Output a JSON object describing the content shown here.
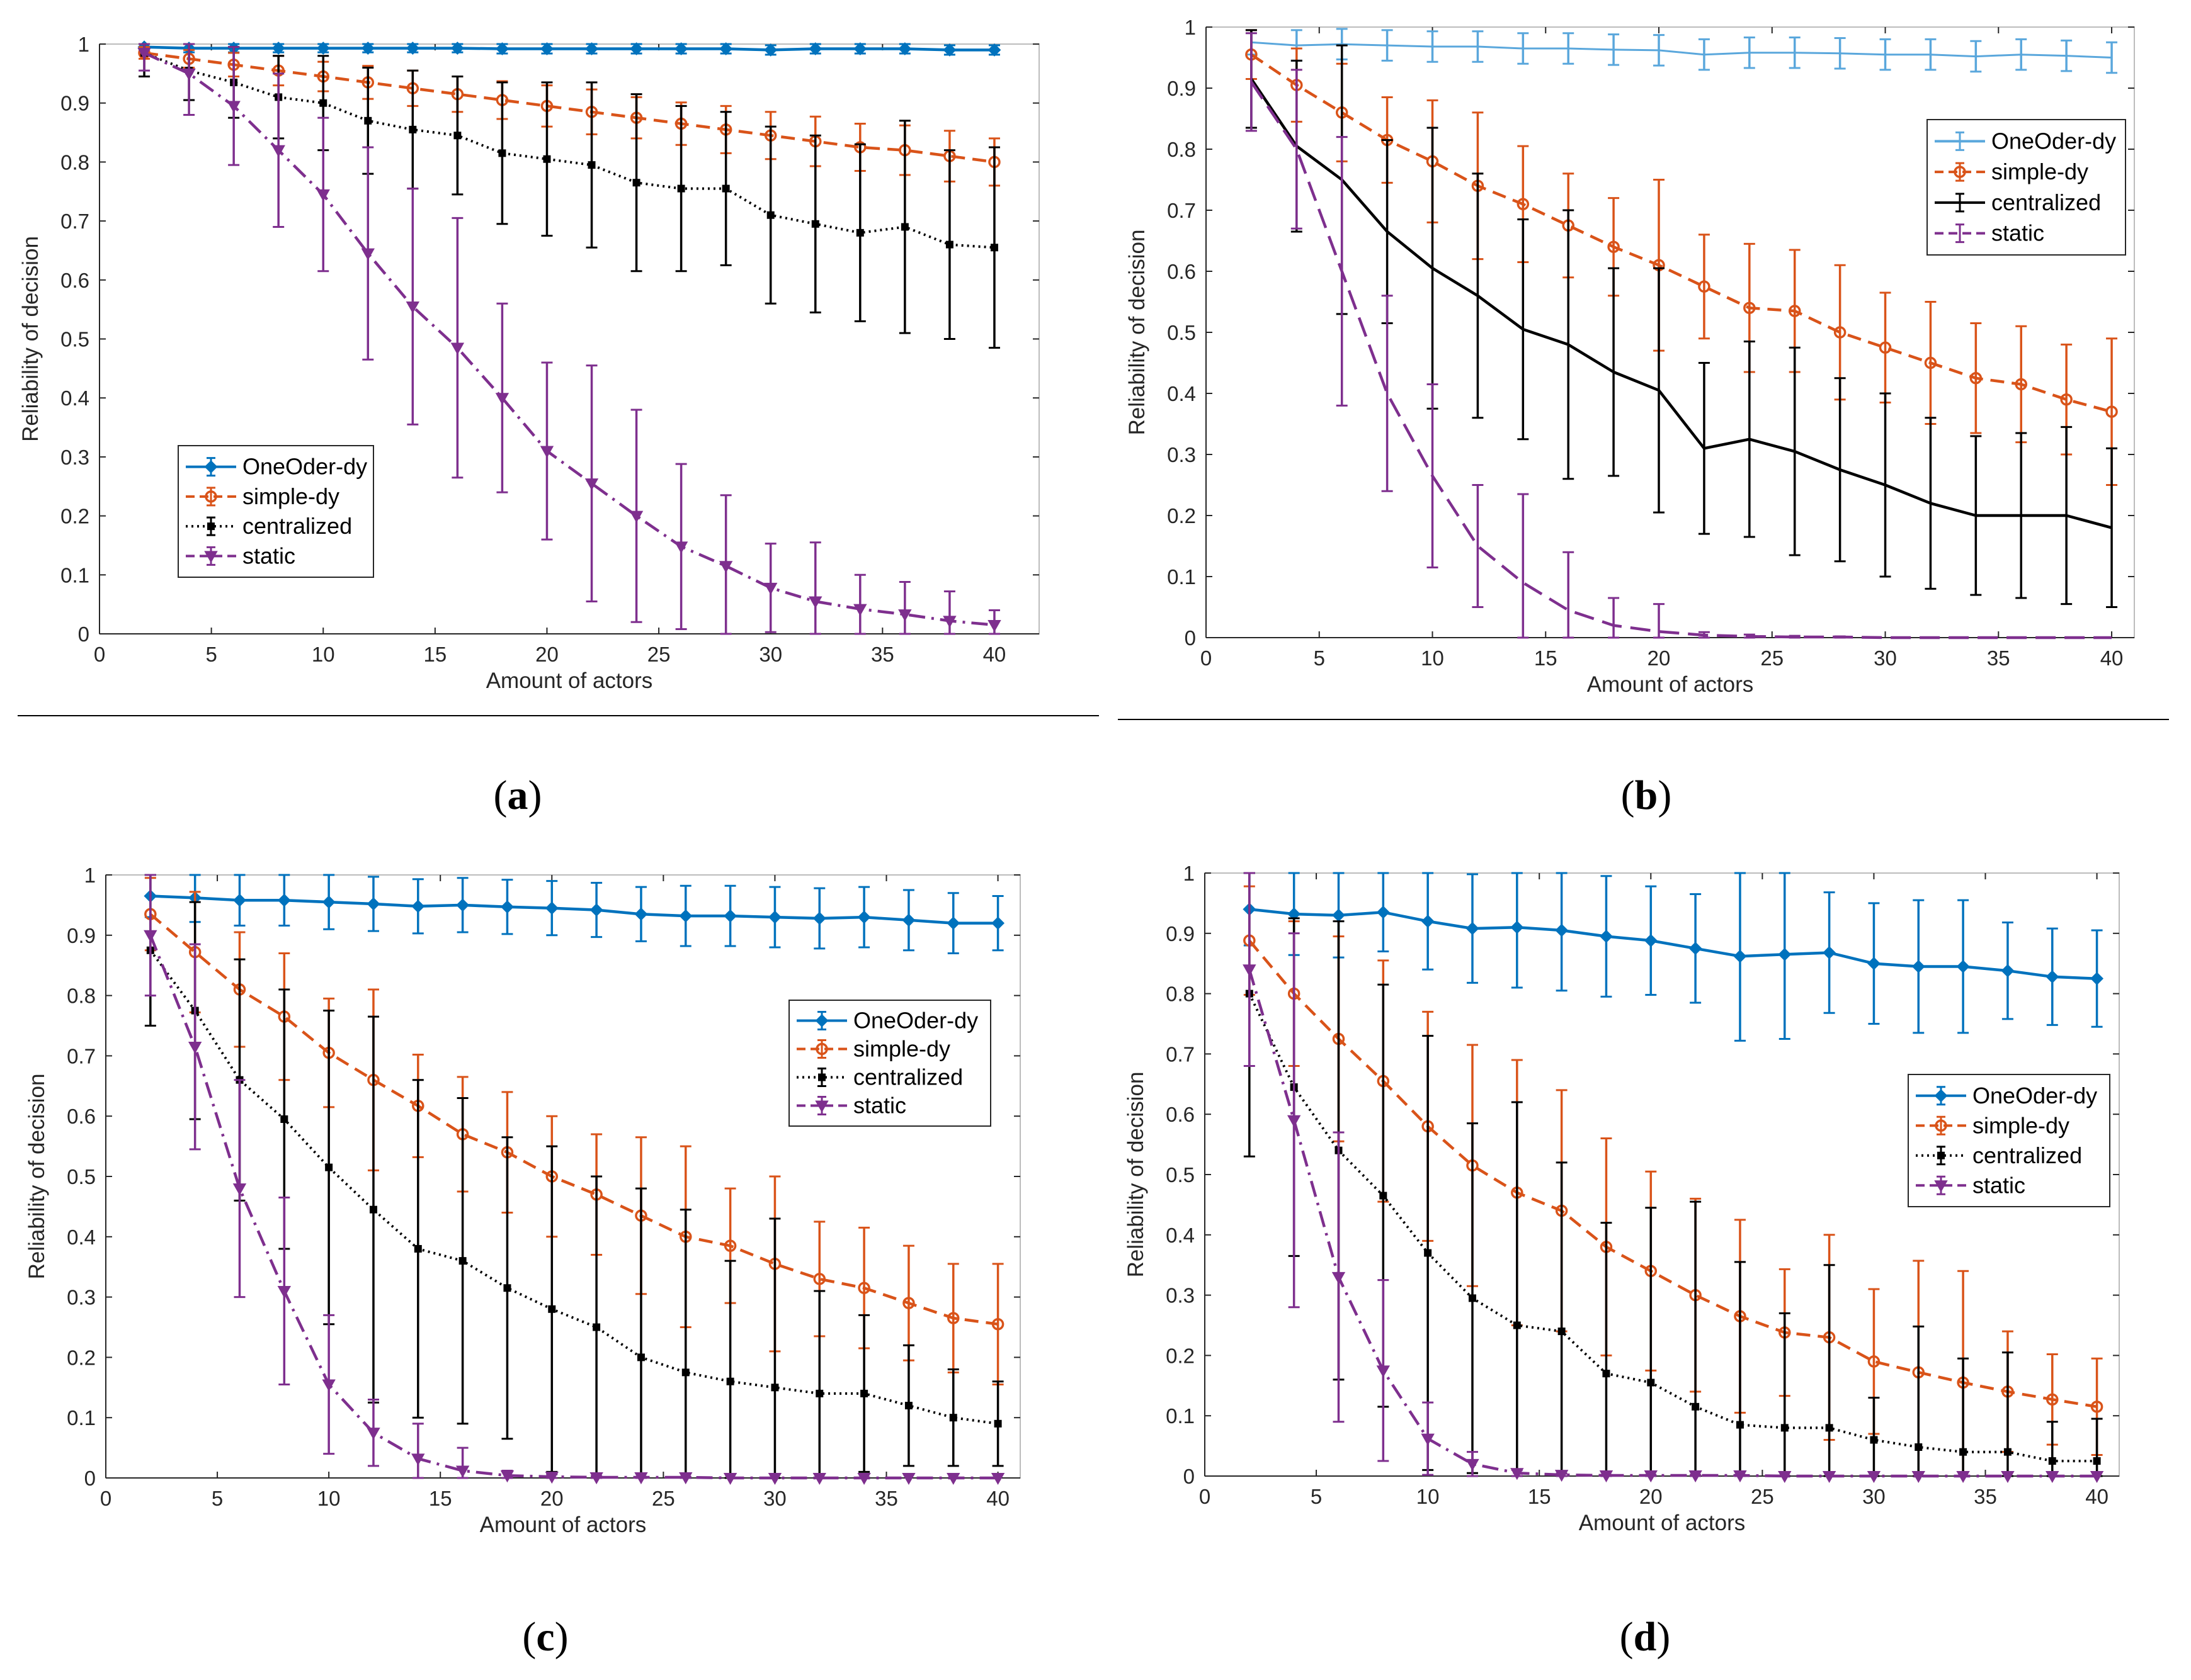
{
  "colors": {
    "OneOder-dy": "#0072BD",
    "simple-dy": "#D95319",
    "centralized": "#000000",
    "static": "#7E2F8E"
  },
  "chart_data": [
    {
      "id": "a",
      "type": "line",
      "caption_letter": "a",
      "xlabel": "Amount of actors",
      "ylabel": "Reliability of decision",
      "xlim": [
        0,
        42
      ],
      "ylim": [
        0,
        1
      ],
      "xticks": [
        0,
        5,
        10,
        15,
        20,
        25,
        30,
        35,
        40
      ],
      "yticks": [
        0,
        0.1,
        0.2,
        0.3,
        0.4,
        0.5,
        0.6,
        0.7,
        0.8,
        0.9,
        1
      ],
      "legend_position": "lower-left",
      "x": [
        2,
        4,
        6,
        8,
        10,
        12,
        14,
        16,
        18,
        20,
        22,
        24,
        26,
        28,
        30,
        32,
        34,
        36,
        38,
        40
      ],
      "series": [
        {
          "name": "OneOder-dy",
          "style": "solid",
          "marker": "diamond",
          "values": [
            0.995,
            0.993,
            0.993,
            0.993,
            0.993,
            0.993,
            0.993,
            0.993,
            0.992,
            0.992,
            0.992,
            0.992,
            0.992,
            0.992,
            0.99,
            0.992,
            0.992,
            0.992,
            0.99,
            0.99
          ],
          "errors": [
            0.006,
            0.007,
            0.007,
            0.007,
            0.007,
            0.007,
            0.007,
            0.007,
            0.008,
            0.008,
            0.008,
            0.008,
            0.008,
            0.008,
            0.008,
            0.008,
            0.008,
            0.008,
            0.008,
            0.008
          ]
        },
        {
          "name": "simple-dy",
          "style": "dashed",
          "marker": "circle",
          "values": [
            0.985,
            0.975,
            0.965,
            0.955,
            0.945,
            0.935,
            0.925,
            0.915,
            0.905,
            0.895,
            0.885,
            0.875,
            0.865,
            0.855,
            0.845,
            0.835,
            0.825,
            0.82,
            0.81,
            0.8
          ],
          "errors": [
            0.01,
            0.015,
            0.02,
            0.025,
            0.025,
            0.028,
            0.03,
            0.03,
            0.032,
            0.035,
            0.038,
            0.035,
            0.036,
            0.04,
            0.04,
            0.042,
            0.04,
            0.042,
            0.043,
            0.04
          ]
        },
        {
          "name": "centralized",
          "style": "dotted",
          "marker": "square",
          "values": [
            0.985,
            0.955,
            0.935,
            0.91,
            0.9,
            0.87,
            0.855,
            0.845,
            0.815,
            0.805,
            0.795,
            0.765,
            0.755,
            0.755,
            0.71,
            0.695,
            0.68,
            0.69,
            0.66,
            0.655
          ],
          "errors": [
            0.04,
            0.05,
            0.06,
            0.07,
            0.08,
            0.09,
            0.1,
            0.1,
            0.12,
            0.13,
            0.14,
            0.15,
            0.14,
            0.13,
            0.15,
            0.15,
            0.15,
            0.18,
            0.16,
            0.17
          ]
        },
        {
          "name": "static",
          "style": "dashdot",
          "marker": "triangle-down",
          "values": [
            0.985,
            0.95,
            0.895,
            0.82,
            0.745,
            0.645,
            0.555,
            0.485,
            0.4,
            0.31,
            0.255,
            0.2,
            0.148,
            0.115,
            0.078,
            0.055,
            0.042,
            0.033,
            0.022,
            0.015
          ],
          "errors": [
            0.03,
            0.07,
            0.1,
            0.13,
            0.13,
            0.18,
            0.2,
            0.22,
            0.16,
            0.15,
            0.2,
            0.18,
            0.14,
            0.12,
            0.075,
            0.1,
            0.058,
            0.055,
            0.05,
            0.025
          ]
        }
      ]
    },
    {
      "id": "b",
      "type": "line",
      "caption_letter": "b",
      "xlabel": "Amount of actors",
      "ylabel": "Reliability of decision",
      "xlim": [
        0,
        41
      ],
      "ylim": [
        0,
        1
      ],
      "xticks": [
        0,
        5,
        10,
        15,
        20,
        25,
        30,
        35,
        40
      ],
      "yticks": [
        0,
        0.1,
        0.2,
        0.3,
        0.4,
        0.5,
        0.6,
        0.7,
        0.8,
        0.9,
        1
      ],
      "legend_position": "upper-right",
      "x": [
        2,
        4,
        6,
        8,
        10,
        12,
        14,
        16,
        18,
        20,
        22,
        24,
        26,
        28,
        30,
        32,
        34,
        36,
        38,
        40
      ],
      "series": [
        {
          "name": "OneOder-dy",
          "style": "solid-light",
          "marker": "none",
          "values": [
            0.975,
            0.97,
            0.972,
            0.97,
            0.968,
            0.968,
            0.965,
            0.965,
            0.963,
            0.962,
            0.955,
            0.958,
            0.958,
            0.957,
            0.955,
            0.955,
            0.952,
            0.955,
            0.953,
            0.95
          ],
          "errors": [
            0.02,
            0.025,
            0.025,
            0.025,
            0.025,
            0.025,
            0.025,
            0.025,
            0.025,
            0.025,
            0.025,
            0.025,
            0.025,
            0.025,
            0.025,
            0.025,
            0.025,
            0.025,
            0.025,
            0.025
          ]
        },
        {
          "name": "simple-dy",
          "style": "dashed",
          "marker": "circle",
          "values": [
            0.955,
            0.905,
            0.86,
            0.815,
            0.78,
            0.74,
            0.71,
            0.675,
            0.64,
            0.61,
            0.575,
            0.54,
            0.535,
            0.5,
            0.475,
            0.45,
            0.425,
            0.415,
            0.39,
            0.37
          ],
          "errors": [
            0.04,
            0.06,
            0.08,
            0.07,
            0.1,
            0.12,
            0.095,
            0.085,
            0.08,
            0.14,
            0.085,
            0.105,
            0.1,
            0.11,
            0.09,
            0.1,
            0.09,
            0.095,
            0.09,
            0.12
          ]
        },
        {
          "name": "centralized",
          "style": "solid",
          "marker": "none",
          "values": [
            0.915,
            0.805,
            0.75,
            0.665,
            0.605,
            0.56,
            0.505,
            0.48,
            0.435,
            0.405,
            0.31,
            0.325,
            0.305,
            0.275,
            0.25,
            0.22,
            0.2,
            0.2,
            0.2,
            0.18
          ],
          "errors": [
            0.08,
            0.14,
            0.22,
            0.15,
            0.23,
            0.2,
            0.18,
            0.22,
            0.17,
            0.2,
            0.14,
            0.16,
            0.17,
            0.15,
            0.15,
            0.14,
            0.13,
            0.135,
            0.145,
            0.13
          ]
        },
        {
          "name": "static",
          "style": "dashed-long",
          "marker": "none",
          "values": [
            0.91,
            0.8,
            0.6,
            0.4,
            0.265,
            0.15,
            0.09,
            0.045,
            0.02,
            0.01,
            0.004,
            0.002,
            0.001,
            0.001,
            0.0,
            0.0,
            0.0,
            0.0,
            0.0,
            0.0
          ],
          "errors": [
            0.08,
            0.13,
            0.22,
            0.16,
            0.15,
            0.1,
            0.145,
            0.095,
            0.045,
            0.045,
            0.005,
            0.003,
            0.002,
            0.001,
            0.0,
            0.0,
            0.0,
            0.0,
            0.0,
            0.0
          ]
        }
      ]
    },
    {
      "id": "c",
      "type": "line",
      "caption_letter": "c",
      "xlabel": "Amount of actors",
      "ylabel": "Reliability of decision",
      "xlim": [
        0,
        41
      ],
      "ylim": [
        0,
        1
      ],
      "xticks": [
        0,
        5,
        10,
        15,
        20,
        25,
        30,
        35,
        40
      ],
      "yticks": [
        0,
        0.1,
        0.2,
        0.3,
        0.4,
        0.5,
        0.6,
        0.7,
        0.8,
        0.9,
        1
      ],
      "legend_position": "right",
      "x": [
        2,
        4,
        6,
        8,
        10,
        12,
        14,
        16,
        18,
        20,
        22,
        24,
        26,
        28,
        30,
        32,
        34,
        36,
        38,
        40
      ],
      "series": [
        {
          "name": "OneOder-dy",
          "style": "solid",
          "marker": "diamond",
          "values": [
            0.965,
            0.962,
            0.958,
            0.958,
            0.955,
            0.952,
            0.948,
            0.95,
            0.947,
            0.945,
            0.942,
            0.935,
            0.932,
            0.932,
            0.93,
            0.928,
            0.93,
            0.925,
            0.92,
            0.92
          ],
          "errors": [
            0.035,
            0.04,
            0.042,
            0.042,
            0.045,
            0.045,
            0.045,
            0.045,
            0.045,
            0.045,
            0.045,
            0.045,
            0.05,
            0.05,
            0.05,
            0.05,
            0.05,
            0.05,
            0.05,
            0.045
          ]
        },
        {
          "name": "simple-dy",
          "style": "dashed",
          "marker": "circle",
          "values": [
            0.935,
            0.872,
            0.81,
            0.765,
            0.705,
            0.66,
            0.617,
            0.57,
            0.54,
            0.5,
            0.47,
            0.435,
            0.4,
            0.385,
            0.355,
            0.33,
            0.315,
            0.29,
            0.265,
            0.255
          ],
          "errors": [
            0.06,
            0.1,
            0.095,
            0.105,
            0.09,
            0.15,
            0.085,
            0.095,
            0.1,
            0.1,
            0.1,
            0.13,
            0.15,
            0.095,
            0.145,
            0.095,
            0.1,
            0.095,
            0.09,
            0.1
          ]
        },
        {
          "name": "centralized",
          "style": "dotted",
          "marker": "square",
          "values": [
            0.875,
            0.775,
            0.66,
            0.595,
            0.515,
            0.445,
            0.38,
            0.36,
            0.315,
            0.28,
            0.25,
            0.2,
            0.175,
            0.16,
            0.15,
            0.14,
            0.14,
            0.12,
            0.1,
            0.09
          ],
          "errors": [
            0.125,
            0.18,
            0.2,
            0.215,
            0.26,
            0.32,
            0.28,
            0.27,
            0.25,
            0.27,
            0.25,
            0.28,
            0.27,
            0.2,
            0.28,
            0.17,
            0.13,
            0.1,
            0.08,
            0.07
          ]
        },
        {
          "name": "static",
          "style": "dashdot",
          "marker": "triangle-down",
          "values": [
            0.9,
            0.715,
            0.48,
            0.31,
            0.155,
            0.075,
            0.032,
            0.012,
            0.004,
            0.002,
            0.001,
            0.001,
            0.001,
            0.0,
            0.0,
            0.0,
            0.0,
            0.0,
            0.0,
            0.0
          ],
          "errors": [
            0.1,
            0.17,
            0.18,
            0.155,
            0.115,
            0.055,
            0.058,
            0.038,
            0.008,
            0.004,
            0.002,
            0.001,
            0.001,
            0.0,
            0.0,
            0.0,
            0.0,
            0.0,
            0.0,
            0.0
          ]
        }
      ]
    },
    {
      "id": "d",
      "type": "line",
      "caption_letter": "d",
      "xlabel": "Amount of actors",
      "ylabel": "Reliability of decision",
      "xlim": [
        0,
        41
      ],
      "ylim": [
        0,
        1
      ],
      "xticks": [
        0,
        5,
        10,
        15,
        20,
        25,
        30,
        35,
        40
      ],
      "yticks": [
        0,
        0.1,
        0.2,
        0.3,
        0.4,
        0.5,
        0.6,
        0.7,
        0.8,
        0.9,
        1
      ],
      "legend_position": "right",
      "x": [
        2,
        4,
        6,
        8,
        10,
        12,
        14,
        16,
        18,
        20,
        22,
        24,
        26,
        28,
        30,
        32,
        34,
        36,
        38,
        40
      ],
      "series": [
        {
          "name": "OneOder-dy",
          "style": "solid",
          "marker": "diamond",
          "values": [
            0.94,
            0.932,
            0.93,
            0.935,
            0.92,
            0.908,
            0.91,
            0.905,
            0.895,
            0.888,
            0.875,
            0.862,
            0.865,
            0.868,
            0.85,
            0.845,
            0.845,
            0.838,
            0.828,
            0.825
          ],
          "errors": [
            0.06,
            0.068,
            0.07,
            0.065,
            0.08,
            0.09,
            0.1,
            0.1,
            0.1,
            0.09,
            0.09,
            0.14,
            0.14,
            0.1,
            0.1,
            0.11,
            0.11,
            0.08,
            0.08,
            0.08
          ]
        },
        {
          "name": "simple-dy",
          "style": "dashed",
          "marker": "circle",
          "values": [
            0.888,
            0.8,
            0.725,
            0.655,
            0.58,
            0.515,
            0.47,
            0.44,
            0.38,
            0.34,
            0.3,
            0.265,
            0.238,
            0.23,
            0.19,
            0.172,
            0.155,
            0.14,
            0.127,
            0.115
          ],
          "errors": [
            0.09,
            0.12,
            0.17,
            0.2,
            0.19,
            0.2,
            0.22,
            0.2,
            0.18,
            0.165,
            0.16,
            0.16,
            0.105,
            0.17,
            0.12,
            0.185,
            0.185,
            0.1,
            0.075,
            0.08
          ]
        },
        {
          "name": "centralized",
          "style": "dotted",
          "marker": "square",
          "values": [
            0.8,
            0.645,
            0.54,
            0.465,
            0.37,
            0.295,
            0.25,
            0.24,
            0.17,
            0.155,
            0.115,
            0.085,
            0.08,
            0.08,
            0.06,
            0.048,
            0.04,
            0.04,
            0.025,
            0.025
          ],
          "errors": [
            0.27,
            0.28,
            0.38,
            0.35,
            0.36,
            0.29,
            0.37,
            0.28,
            0.25,
            0.29,
            0.34,
            0.27,
            0.19,
            0.27,
            0.07,
            0.2,
            0.155,
            0.165,
            0.065,
            0.07
          ]
        },
        {
          "name": "static",
          "style": "dashdot",
          "marker": "triangle-down",
          "values": [
            0.84,
            0.59,
            0.33,
            0.175,
            0.062,
            0.02,
            0.005,
            0.002,
            0.001,
            0.001,
            0.001,
            0.001,
            0.0,
            0.0,
            0.0,
            0.0,
            0.0,
            0.0,
            0.0,
            0.0
          ],
          "errors": [
            0.16,
            0.31,
            0.24,
            0.15,
            0.06,
            0.02,
            0.005,
            0.002,
            0.001,
            0.001,
            0.001,
            0.001,
            0.0,
            0.0,
            0.0,
            0.0,
            0.0,
            0.0,
            0.0,
            0.0
          ]
        }
      ]
    }
  ]
}
